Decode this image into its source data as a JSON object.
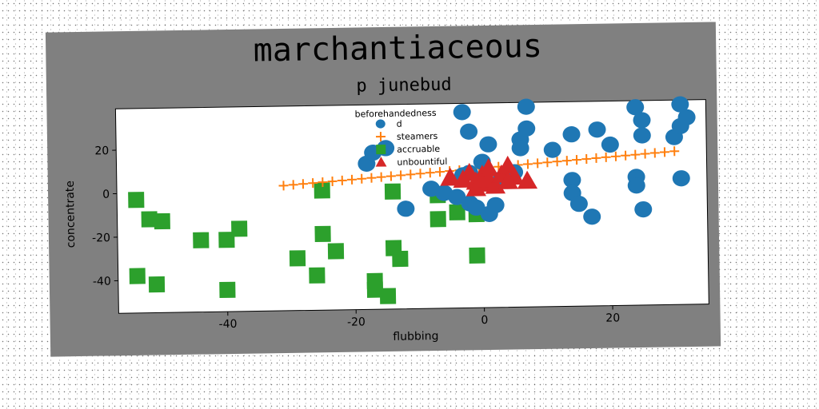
{
  "chart_data": {
    "type": "scatter",
    "title": "marchantiaceous",
    "subtitle": "p junebud",
    "xlabel": "flubbing",
    "ylabel": "concentrate",
    "xlim": [
      -57,
      35
    ],
    "ylim": [
      -55,
      39
    ],
    "x_ticks": [
      -40,
      -20,
      0,
      20
    ],
    "y_ticks": [
      -40,
      -20,
      0,
      20
    ],
    "grid": false,
    "legend": {
      "title": "beforehandedness",
      "placement": "top-center"
    },
    "colors": {
      "d": "#1f77b4",
      "steamers": "#ff7f0e",
      "accruable": "#2ca02c",
      "unbountiful": "#d62728",
      "frame": "#808080"
    },
    "series": [
      {
        "name": "d",
        "marker": "circle",
        "points": [
          [
            7,
            37
          ],
          [
            -3,
            35
          ],
          [
            -2,
            26
          ],
          [
            1,
            20
          ],
          [
            6,
            22
          ],
          [
            6,
            18
          ],
          [
            7,
            27
          ],
          [
            11,
            17
          ],
          [
            14,
            24
          ],
          [
            18,
            26
          ],
          [
            20,
            19
          ],
          [
            24,
            36
          ],
          [
            25,
            30
          ],
          [
            25,
            23
          ],
          [
            30,
            22
          ],
          [
            31,
            27
          ],
          [
            31,
            37
          ],
          [
            32,
            31
          ],
          [
            31,
            3
          ],
          [
            24,
            4
          ],
          [
            24,
            0
          ],
          [
            14,
            3
          ],
          [
            14,
            -3
          ],
          [
            15,
            -8
          ],
          [
            17,
            -14
          ],
          [
            25,
            -11
          ],
          [
            -12,
            -9
          ],
          [
            -8,
            0
          ],
          [
            -6,
            -2
          ],
          [
            -4,
            -4
          ],
          [
            -2,
            -7
          ],
          [
            -1,
            -9
          ],
          [
            1,
            -12
          ],
          [
            2,
            -8
          ],
          [
            3,
            4
          ],
          [
            0,
            12
          ],
          [
            -2,
            7
          ],
          [
            5,
            7
          ],
          [
            -15,
            19
          ],
          [
            -18,
            12
          ],
          [
            -17,
            17
          ],
          [
            -3,
            6
          ]
        ]
      },
      {
        "name": "steamers",
        "marker": "plus",
        "line": {
          "from": [
            -31,
            2.5
          ],
          "to": [
            30,
            15.5
          ]
        }
      },
      {
        "name": "accruable",
        "marker": "square",
        "points": [
          [
            -54,
            -3
          ],
          [
            -52,
            -12
          ],
          [
            -50,
            -13
          ],
          [
            -44,
            -22
          ],
          [
            -40,
            -22
          ],
          [
            -38,
            -17
          ],
          [
            -40,
            -45
          ],
          [
            -54,
            -38
          ],
          [
            -51,
            -42
          ],
          [
            -29,
            -31
          ],
          [
            -26,
            -39
          ],
          [
            -25,
            -20
          ],
          [
            -23,
            -28
          ],
          [
            -25,
            0
          ],
          [
            -17,
            -42
          ],
          [
            -17,
            -46
          ],
          [
            -15,
            -49
          ],
          [
            -14,
            -27
          ],
          [
            -13,
            -32
          ],
          [
            -14,
            -1
          ],
          [
            -7,
            -3
          ],
          [
            -7,
            -14
          ],
          [
            -4,
            -11
          ],
          [
            -1,
            -12
          ],
          [
            -1,
            -31
          ]
        ]
      },
      {
        "name": "unbountiful",
        "marker": "triangle",
        "points": [
          [
            -5,
            5
          ],
          [
            -2,
            7
          ],
          [
            -1,
            3
          ],
          [
            0,
            6
          ],
          [
            1,
            9
          ],
          [
            0,
            2
          ],
          [
            -1,
            0
          ],
          [
            1,
            4
          ],
          [
            2,
            1
          ],
          [
            3,
            6
          ],
          [
            4,
            10
          ],
          [
            5,
            5
          ],
          [
            4,
            3
          ],
          [
            7,
            3
          ],
          [
            -3,
            4
          ]
        ]
      }
    ]
  }
}
